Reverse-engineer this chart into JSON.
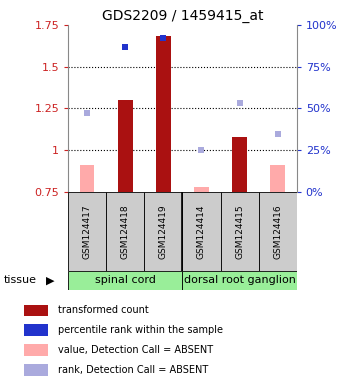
{
  "title": "GDS2209 / 1459415_at",
  "samples": [
    "GSM124417",
    "GSM124418",
    "GSM124419",
    "GSM124414",
    "GSM124415",
    "GSM124416"
  ],
  "tissue_labels": [
    "spinal cord",
    "dorsal root ganglion"
  ],
  "tissue_split": 3,
  "ylim": [
    0.75,
    1.75
  ],
  "yticks": [
    0.75,
    1.0,
    1.25,
    1.5,
    1.75
  ],
  "ytick_labels_left": [
    "0.75",
    "1",
    "1.25",
    "1.5",
    "1.75"
  ],
  "right_yticks": [
    0,
    25,
    50,
    75,
    100
  ],
  "bar_values": [
    0.91,
    1.3,
    1.685,
    0.78,
    1.08,
    0.91
  ],
  "bar_absent": [
    true,
    false,
    false,
    true,
    false,
    true
  ],
  "rank_values": [
    1.22,
    1.62,
    1.67,
    1.0,
    1.28,
    1.1
  ],
  "rank_absent": [
    true,
    false,
    false,
    true,
    true,
    true
  ],
  "bar_bottom": 0.75,
  "bar_color_present": "#aa1111",
  "bar_color_absent": "#ffaaaa",
  "rank_color_present": "#2233cc",
  "rank_color_absent": "#aaaadd",
  "tick_color_left": "#cc2222",
  "tick_color_right": "#2233cc",
  "tissue_color": "#99ee99",
  "sample_box_color": "#cccccc",
  "grid_color": "black",
  "legend_items": [
    {
      "color": "#aa1111",
      "label": "transformed count"
    },
    {
      "color": "#2233cc",
      "label": "percentile rank within the sample"
    },
    {
      "color": "#ffaaaa",
      "label": "value, Detection Call = ABSENT"
    },
    {
      "color": "#aaaadd",
      "label": "rank, Detection Call = ABSENT"
    }
  ]
}
